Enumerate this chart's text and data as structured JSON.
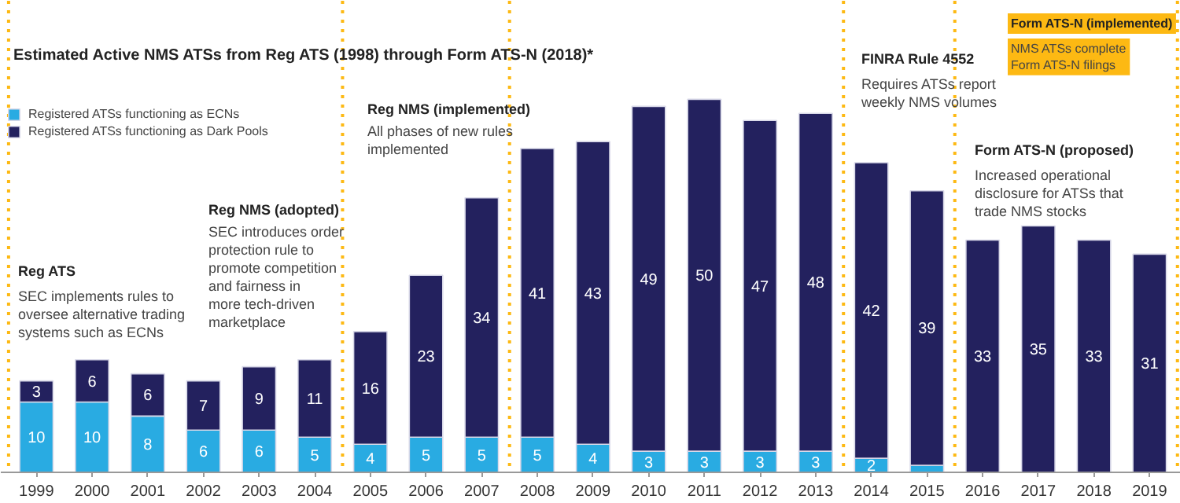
{
  "chart_data": {
    "type": "bar",
    "stacked": true,
    "title": "Estimated Active NMS ATSs from Reg ATS (1998) through Form ATS-N (2018)*",
    "x": [
      1999,
      2000,
      2001,
      2002,
      2003,
      2004,
      2005,
      2006,
      2007,
      2008,
      2009,
      2010,
      2011,
      2012,
      2013,
      2014,
      2015,
      2016,
      2017,
      2018,
      2019
    ],
    "xlim": [
      1998.36,
      2019.56
    ],
    "xticks": [
      1999,
      2000,
      2001,
      2002,
      2003,
      2004,
      2005,
      2006,
      2007,
      2008,
      2009,
      2010,
      2011,
      2012,
      2013,
      2014,
      2015,
      2016,
      2017,
      2018,
      2019
    ],
    "ylim": [
      0,
      67
    ],
    "tick_labels": "x",
    "series": [
      {
        "name": "Registered ATSs functioning as ECNs",
        "color": "#29abe2",
        "values": [
          10,
          10,
          8,
          6,
          6,
          5,
          4,
          5,
          5,
          5,
          4,
          3,
          3,
          3,
          3,
          2,
          1,
          0,
          0,
          0,
          0
        ],
        "value_labels": [
          "10",
          "10",
          "8",
          "6",
          "6",
          "5",
          "4",
          "5",
          "5",
          "5",
          "4",
          "3",
          "3",
          "3",
          "3",
          "2",
          null,
          null,
          null,
          null,
          null
        ]
      },
      {
        "name": "Registered ATSs functioning as Dark Pools",
        "color": "#23215e",
        "values": [
          3,
          6,
          6,
          7,
          9,
          11,
          16,
          23,
          34,
          41,
          43,
          49,
          50,
          47,
          48,
          42,
          39,
          33,
          35,
          33,
          31
        ],
        "value_labels": [
          "3",
          "6",
          "6",
          "7",
          "9",
          "11",
          "16",
          "23",
          "34",
          "41",
          "43",
          "49",
          "50",
          "47",
          "48",
          "42",
          "39",
          "33",
          "35",
          "33",
          "31"
        ]
      }
    ],
    "legend": "top left",
    "grid": false,
    "ref_lines": [
      {
        "axis": "x",
        "value": 1998.5,
        "color": "#fdb913",
        "line_style": "dotted"
      },
      {
        "axis": "x",
        "value": 2004.5,
        "color": "#fdb913",
        "line_style": "dotted"
      },
      {
        "axis": "x",
        "value": 2007.5,
        "color": "#fdb913",
        "line_style": "dotted"
      },
      {
        "axis": "x",
        "value": 2013.5,
        "color": "#fdb913",
        "line_style": "dotted"
      },
      {
        "axis": "x",
        "value": 2015.5,
        "color": "#fdb913",
        "line_style": "dotted"
      },
      {
        "axis": "x",
        "value": 2019.5,
        "color": "#fdb913",
        "line_style": "dotted"
      }
    ],
    "annotations": [
      "Reg ATS",
      "SEC implements rules to\noversee alternative trading\nsystems such as ECNs",
      "Reg NMS (adopted)",
      "SEC introduces order\nprotection rule to\npromote competition\nand fairness in\nmore tech-driven\nmarketplace",
      "Reg NMS (implemented)",
      "All phases of new rules\nimplemented",
      "FINRA Rule 4552",
      "Requires ATSs report\nweekly NMS volumes",
      "Form ATS-N (proposed)",
      "Increased operational\ndisclosure for ATSs that\ntrade NMS stocks",
      "Form ATS-N (implemented)",
      "NMS ATSs complete\nForm ATS-N filings"
    ]
  }
}
